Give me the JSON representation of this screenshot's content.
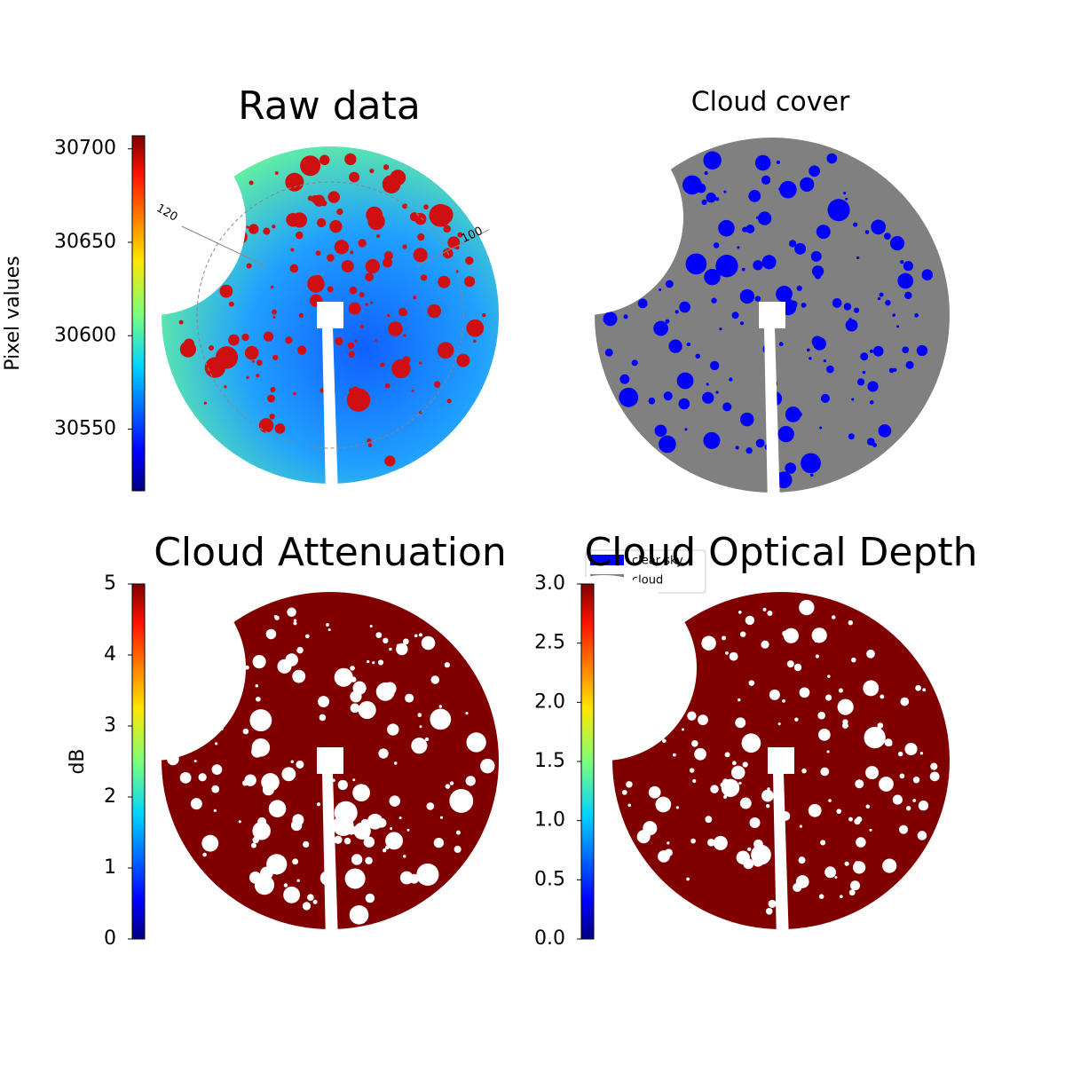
{
  "chart_data": [
    {
      "type": "image",
      "title": "Raw data",
      "colormap": "jet",
      "colorbar_label": "Pixel values",
      "ylim": [
        30517,
        30707
      ],
      "yticks": [
        30550,
        30600,
        30650,
        30700
      ],
      "annotations": [
        "120",
        "100"
      ]
    },
    {
      "type": "image",
      "title": "Cloud cover",
      "series": [
        {
          "name": "clear sky",
          "color": "#0000ff"
        },
        {
          "name": "cloud",
          "color": "#808080"
        }
      ]
    },
    {
      "type": "image",
      "title": "Cloud Attenuation",
      "colormap": "jet",
      "colorbar_label": "dB",
      "color": "#800000",
      "ylim": [
        0,
        5
      ],
      "yticks": [
        0,
        1,
        2,
        3,
        4,
        5
      ]
    },
    {
      "type": "image",
      "title": "Cloud Optical Depth",
      "colormap": "jet",
      "color": "#800000",
      "ylim": [
        0,
        3
      ],
      "yticks": [
        {
          "value": 0,
          "label": "0.0"
        },
        0.5,
        {
          "value": 1,
          "label": "1.0"
        },
        1.5,
        {
          "value": 2,
          "label": "2.0"
        },
        2.5,
        {
          "value": 3,
          "label": "3.0"
        }
      ]
    }
  ]
}
